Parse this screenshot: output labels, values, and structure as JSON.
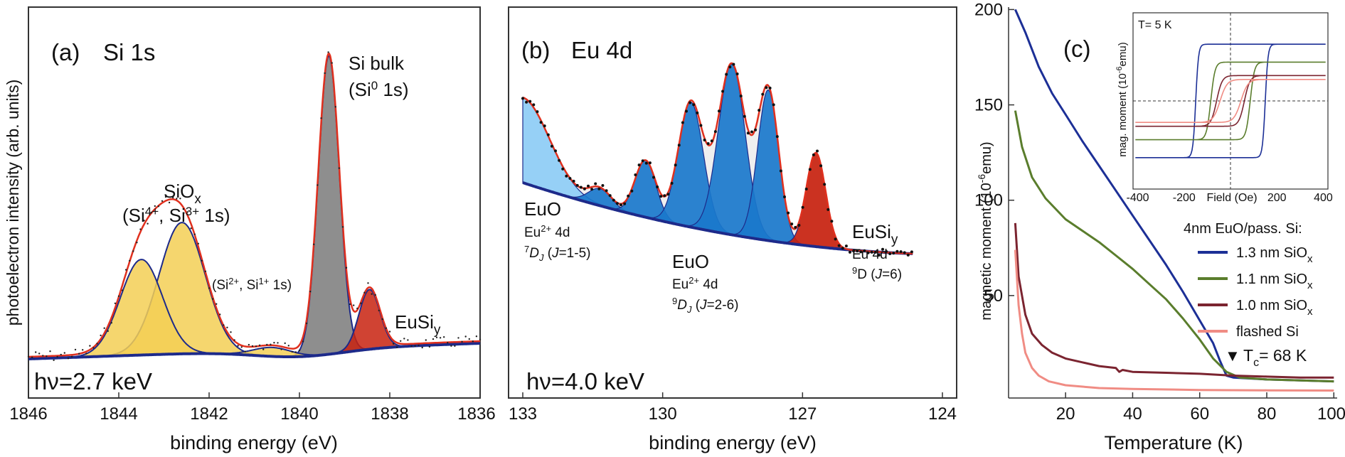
{
  "chart_data": [
    {
      "type": "line",
      "panel": "(a)",
      "title": "Si 1s",
      "xlabel": "binding energy (eV)",
      "ylabel": "photoelectron intensity (arb. units)",
      "x_reversed": true,
      "xlim": [
        1846,
        1836
      ],
      "ylim": [
        0,
        1
      ],
      "x_ticks": [
        "1846",
        "1844",
        "1842",
        "1840",
        "1838",
        "1836"
      ],
      "photon_energy": "hν=2.7 keV",
      "peaks": [
        {
          "name": "SiOx (Si4+, Si3+ 1s)",
          "label_main": "SiO",
          "label_sub": "x",
          "label_line2": "(Si4+, Si3+ 1s)",
          "center": 1842.6,
          "height": 0.44,
          "fwhm": 1.2,
          "color": "#f3cf55"
        },
        {
          "name": "SiOx (Si4+, Si3+ 1s) b",
          "center": 1843.5,
          "height": 0.32,
          "fwhm": 1.1,
          "color": "#f3cf55"
        },
        {
          "name": "Si bulk (Si0 1s)",
          "label_line1": "Si bulk",
          "label_line2": "(Si0 1s)",
          "center": 1839.35,
          "height": 1.0,
          "fwhm": 0.55,
          "color": "#7a7a7a"
        },
        {
          "name": "(Si2+, Si1+ 1s)",
          "label": "(Si2+, Si1+ 1s)",
          "center": 1840.6,
          "height": 0.03,
          "fwhm": 1.0,
          "color": "#f3cf55"
        },
        {
          "name": "EuSiy",
          "label_main": "EuSi",
          "label_sub": "y",
          "center": 1838.45,
          "height": 0.2,
          "fwhm": 0.55,
          "color": "#c8220f"
        }
      ]
    },
    {
      "type": "line",
      "panel": "(b)",
      "title": "Eu 4d",
      "xlabel": "binding energy (eV)",
      "x_reversed": true,
      "xlim": [
        133,
        124
      ],
      "ylim": [
        0,
        1
      ],
      "x_ticks": [
        "133",
        "130",
        "127",
        "124"
      ],
      "photon_energy": "hν=4.0 keV",
      "peaks": [
        {
          "name": "EuO 7DJ tail",
          "center": 133.0,
          "height": 0.3,
          "fwhm": 1.4,
          "color": "#8ecdf6"
        },
        {
          "name": "EuO 7DJ 1",
          "center": 131.3,
          "height": 0.06,
          "fwhm": 0.6,
          "color": "#1a78cc"
        },
        {
          "name": "EuO 7DJ 2",
          "center": 130.3,
          "height": 0.2,
          "fwhm": 0.55,
          "color": "#1a78cc"
        },
        {
          "name": "EuO 9DJ 1",
          "center": 129.3,
          "height": 0.44,
          "fwhm": 0.65,
          "color": "#1a78cc"
        },
        {
          "name": "EuO 9DJ 2",
          "center": 128.4,
          "height": 0.6,
          "fwhm": 0.7,
          "color": "#1a78cc"
        },
        {
          "name": "EuO 9DJ 3",
          "center": 127.6,
          "height": 0.53,
          "fwhm": 0.55,
          "color": "#1a78cc"
        },
        {
          "name": "EuSiy 9D",
          "center": 126.55,
          "height": 0.33,
          "fwhm": 0.5,
          "color": "#c8220f"
        }
      ],
      "labels": {
        "euo_a": {
          "l1": "EuO",
          "l2": "Eu2+ 4d",
          "l3": "7DJ (J=1-5)"
        },
        "euo_b": {
          "l1": "EuO",
          "l2": "Eu2+ 4d",
          "l3": "9DJ (J=2-6)"
        },
        "eusi": {
          "l1": "EuSiy",
          "l2": "Eu 4d",
          "l3": "9D (J=6)"
        }
      },
      "text": {
        "euo_name": "EuO",
        "eu": "Eu",
        "two_plus": "2+",
        "four_d": " 4d",
        "sup7": "7",
        "sup9": "9",
        "D": "D",
        "J": "J",
        "j15": " (J=1-5)",
        "j26": " (J=2-6)",
        "eusi_main": "EuSi",
        "eusi_sub": "y",
        "eu4d": "Eu 4d",
        "j6": "D (J=6)",
        "eq15": "=1-5)",
        "eq26": "=2-6)",
        "eq6": "=6)",
        "open_paren": " ("
      }
    },
    {
      "type": "line",
      "panel": "(c)",
      "xlabel": "Temperature (K)",
      "ylabel": "magnetic moment (10-6 emu)",
      "ylabel_parts": {
        "a": "magnetic moment (10",
        "sup": "-6",
        "b": "emu)"
      },
      "xlim": [
        3,
        101
      ],
      "ylim": [
        0,
        205
      ],
      "x_ticks": [
        "20",
        "40",
        "60",
        "80",
        "100"
      ],
      "y_ticks": [
        "50",
        "100",
        "150",
        "200"
      ],
      "legend_title": "4nm EuO/pass. Si:",
      "tc_label": "T",
      "tc_sub": "c",
      "tc_value": "= 68 K",
      "series": [
        {
          "name": "1.3 nm SiOx",
          "name_main": "1.3 nm SiO",
          "name_sub": "x",
          "color": "#1c2f96",
          "x": [
            5,
            8,
            12,
            16,
            20,
            25,
            30,
            35,
            40,
            45,
            50,
            55,
            60,
            64,
            66,
            67,
            68,
            70,
            80,
            90,
            100
          ],
          "y": [
            200,
            188,
            170,
            156,
            145,
            131,
            118,
            105,
            92,
            79,
            66,
            52,
            37,
            25,
            16,
            12,
            8,
            7,
            6,
            5.5,
            5
          ]
        },
        {
          "name": "1.1 nm SiOx",
          "name_main": "1.1 nm SiO",
          "name_sub": "x",
          "color": "#5a7d2c",
          "x": [
            5,
            7,
            10,
            14,
            20,
            25,
            30,
            35,
            40,
            45,
            50,
            55,
            60,
            64,
            68,
            72,
            80,
            90,
            100
          ],
          "y": [
            147,
            128,
            112,
            101,
            90,
            84,
            78,
            71,
            64,
            56,
            48,
            38,
            27,
            17,
            10,
            7,
            6,
            5.5,
            5
          ]
        },
        {
          "name": "1.0 nm SiOx",
          "name_main": "1.0 nm SiO",
          "name_sub": "x",
          "color": "#7b2430",
          "x": [
            5,
            6,
            8,
            10,
            13,
            16,
            20,
            25,
            30,
            35,
            36,
            37,
            40,
            50,
            60,
            70,
            80,
            90,
            100
          ],
          "y": [
            88,
            60,
            40,
            30,
            24,
            20,
            17,
            15,
            13,
            12,
            10,
            11,
            10,
            9.5,
            9,
            8,
            7.5,
            7,
            7
          ]
        },
        {
          "name": "flashed Si",
          "color": "#f08c84",
          "x": [
            5,
            6,
            7,
            8,
            10,
            12,
            15,
            20,
            30,
            40,
            60,
            80,
            100
          ],
          "y": [
            74,
            45,
            30,
            20,
            12,
            8,
            5,
            3,
            1.5,
            1,
            0.5,
            0.3,
            0.2
          ]
        }
      ],
      "inset": {
        "title": "T= 5 K",
        "xlabel": "Field (Oe)",
        "ylabel": "mag. moment (10-6 emu)",
        "ylabel_parts": {
          "a": "mag. moment (10",
          "sup": "-6",
          "b": "emu)"
        },
        "x_ticks": [
          "-400",
          "-200",
          "200",
          "400"
        ],
        "xlim": [
          -420,
          420
        ],
        "loops": [
          {
            "series": "1.3 nm SiOx",
            "Ms": 190,
            "Hc": 150,
            "color": "#1c2f96"
          },
          {
            "series": "1.1 nm SiOx",
            "Ms": 130,
            "Hc": 85,
            "color": "#5a7d2c"
          },
          {
            "series": "1.0 nm SiOx",
            "Ms": 85,
            "Hc": 60,
            "color": "#7b2430"
          },
          {
            "series": "flashed Si",
            "Ms": 72,
            "Hc": 45,
            "color": "#f08c84"
          }
        ]
      }
    }
  ]
}
